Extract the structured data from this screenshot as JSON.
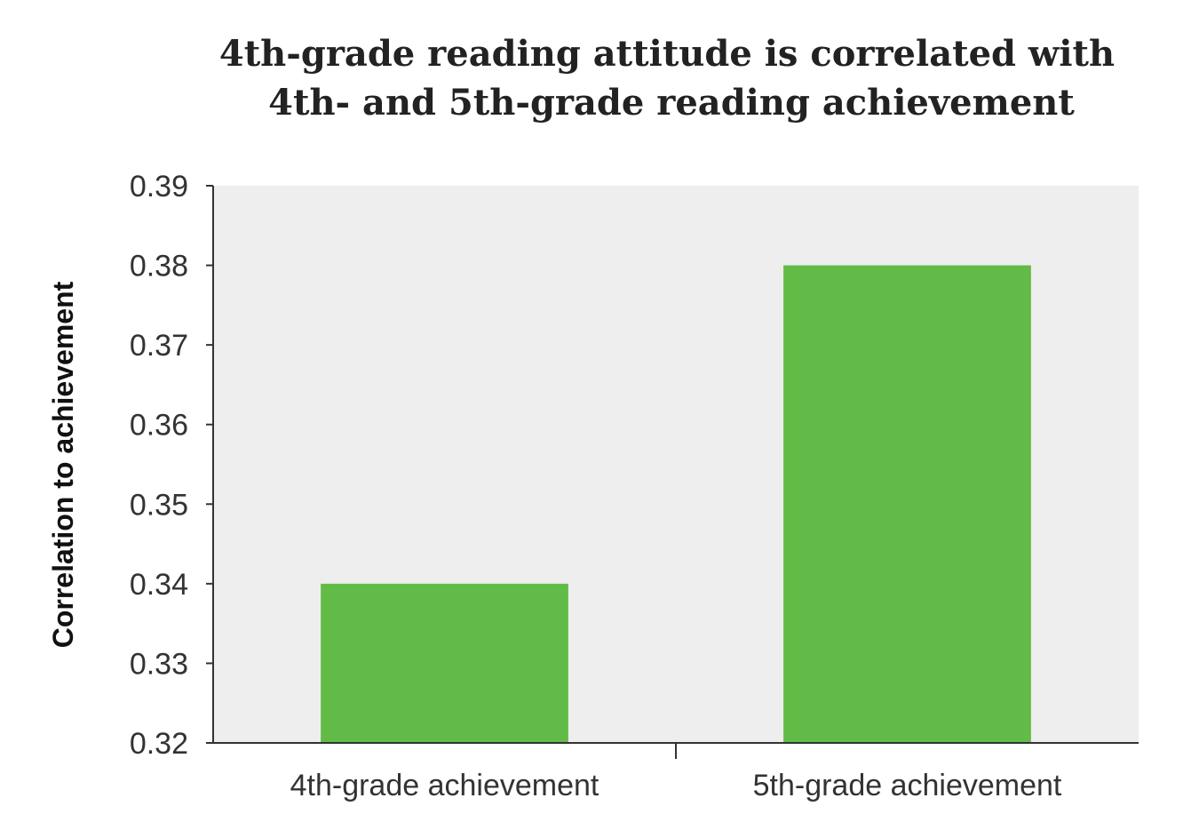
{
  "chart_data": {
    "type": "bar",
    "title_lines": [
      "4th-grade reading attitude is correlated with",
      "4th- and 5th-grade reading achievement"
    ],
    "xlabel": "",
    "ylabel": "Correlation to achievement",
    "categories": [
      "4th-grade achievement",
      "5th-grade achievement"
    ],
    "values": [
      0.34,
      0.38
    ],
    "ylim": [
      0.32,
      0.39
    ],
    "yticks": [
      0.32,
      0.33,
      0.34,
      0.35,
      0.36,
      0.37,
      0.38,
      0.39
    ],
    "ytick_labels": [
      "0.32",
      "0.33",
      "0.34",
      "0.35",
      "0.36",
      "0.37",
      "0.38",
      "0.39"
    ],
    "grid": false,
    "colors": {
      "bar": "#62bb46",
      "plot_background": "#eeeeee",
      "axis": "#333333"
    }
  }
}
